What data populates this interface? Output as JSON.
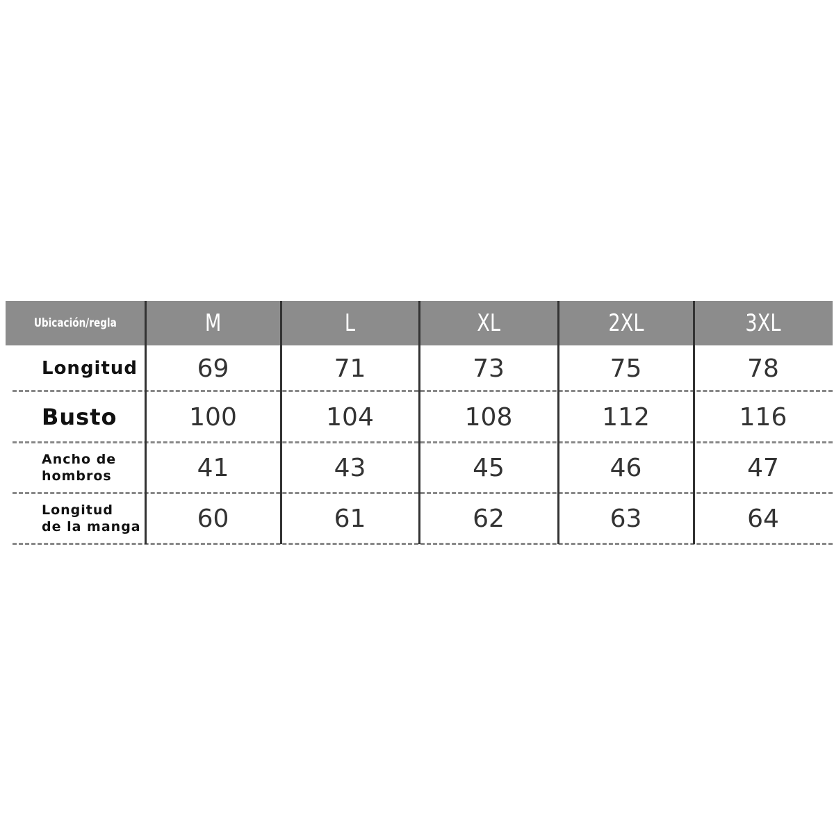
{
  "table": {
    "header": [
      "Ubicación/regla",
      "M",
      "L",
      "XL",
      "2XL",
      "3XL"
    ],
    "rows": [
      [
        "Longitud",
        69,
        71,
        73,
        75,
        78
      ],
      [
        "Busto",
        100,
        104,
        108,
        112,
        116
      ],
      [
        "Ancho de\nhombros",
        41,
        43,
        45,
        46,
        47
      ],
      [
        "Longitud\nde la manga",
        60,
        61,
        62,
        63,
        64
      ]
    ]
  }
}
